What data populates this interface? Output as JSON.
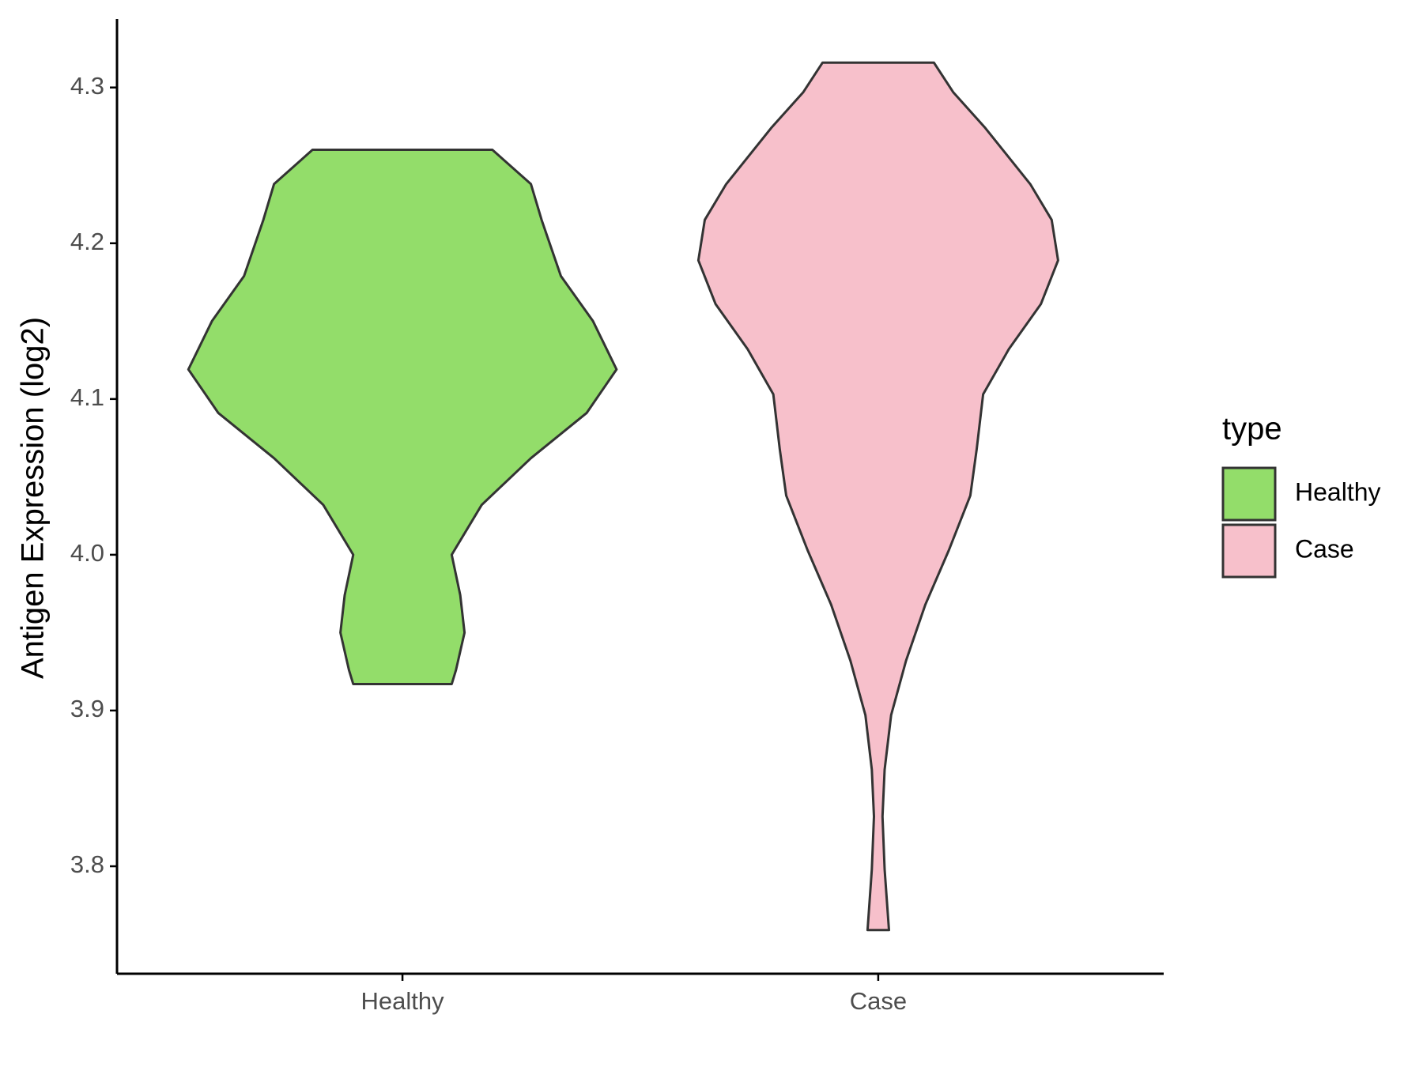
{
  "chart_data": {
    "type": "violin",
    "ylabel": "Antigen Expression (log2)",
    "categories": [
      "Healthy",
      "Case"
    ],
    "legend_title": "type",
    "legend_position": "right",
    "ylim": [
      3.731,
      4.344
    ],
    "yticks": [
      {
        "value": 3.8,
        "label": "3.8"
      },
      {
        "value": 3.9,
        "label": "3.9"
      },
      {
        "value": 4.0,
        "label": "4.0"
      },
      {
        "value": 4.1,
        "label": "4.1"
      },
      {
        "value": 4.2,
        "label": "4.2"
      },
      {
        "value": 4.3,
        "label": "4.3"
      }
    ],
    "series": [
      {
        "name": "Healthy",
        "color": "#93dd6a",
        "y": [
          4.26,
          4.238,
          4.215,
          4.179,
          4.15,
          4.119,
          4.091,
          4.062,
          4.032,
          4.0,
          3.974,
          3.95,
          3.926,
          3.917
        ],
        "width": [
          0.42,
          0.6,
          0.65,
          0.74,
          0.89,
          1.0,
          0.86,
          0.6,
          0.37,
          0.23,
          0.27,
          0.29,
          0.25,
          0.23
        ]
      },
      {
        "name": "Case",
        "color": "#f7c0cb",
        "y": [
          4.316,
          4.297,
          4.274,
          4.238,
          4.215,
          4.189,
          4.161,
          4.132,
          4.103,
          4.068,
          4.038,
          4.003,
          3.968,
          3.932,
          3.897,
          3.862,
          3.832,
          3.798,
          3.759
        ],
        "width": [
          0.26,
          0.35,
          0.5,
          0.71,
          0.81,
          0.84,
          0.76,
          0.61,
          0.49,
          0.46,
          0.43,
          0.33,
          0.22,
          0.13,
          0.06,
          0.03,
          0.02,
          0.03,
          0.05
        ]
      }
    ]
  }
}
